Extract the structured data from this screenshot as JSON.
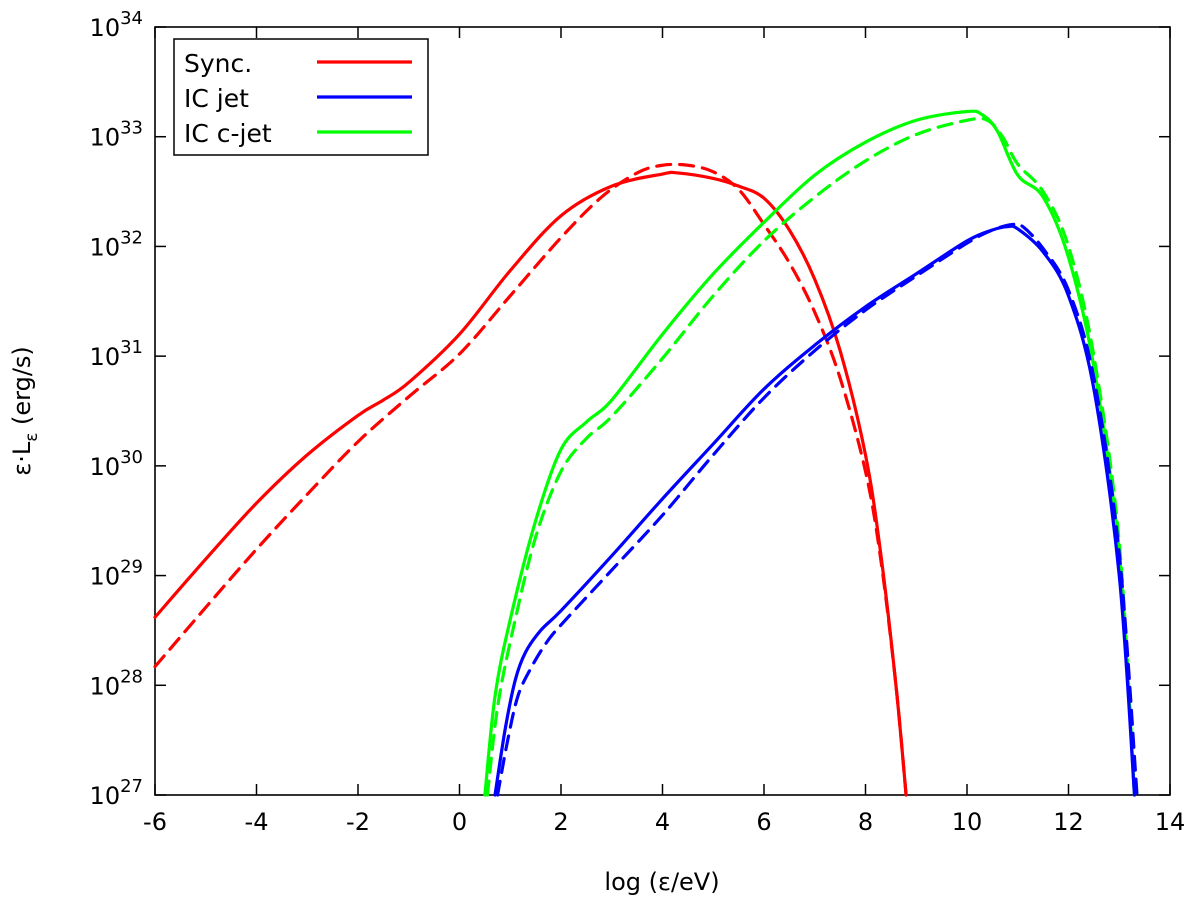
{
  "chart_data": {
    "type": "line",
    "title": "",
    "xlabel": "log (ε/eV)",
    "ylabel_base": "ε·L",
    "ylabel_sub": "ε",
    "ylabel_unit": " (erg/s)",
    "xlim": [
      -6,
      14
    ],
    "ylim_log10": [
      27,
      34
    ],
    "x_ticks": [
      -6,
      -4,
      -2,
      0,
      2,
      4,
      6,
      8,
      10,
      12,
      14
    ],
    "y_tick_exponents": [
      27,
      28,
      29,
      30,
      31,
      32,
      33,
      34
    ],
    "y_tick_base": "10",
    "grid": false,
    "legend_position": "top-left",
    "legend": [
      {
        "label": "Sync.",
        "color": "#ff0000"
      },
      {
        "label": "IC jet",
        "color": "#0000ff"
      },
      {
        "label": "IC c-jet",
        "color": "#00ff00"
      }
    ],
    "series": [
      {
        "name": "Sync.",
        "style": "solid",
        "color": "#ff0000",
        "x": [
          -6,
          -5,
          -4,
          -3,
          -2,
          -1.5,
          -1,
          0,
          1,
          2,
          3,
          4,
          4.3,
          5,
          5.5,
          6,
          6.5,
          7,
          7.5,
          8,
          8.3,
          8.6,
          8.8
        ],
        "log_y": [
          28.62,
          29.15,
          29.66,
          30.1,
          30.46,
          30.6,
          30.76,
          31.2,
          31.78,
          32.28,
          32.55,
          32.66,
          32.67,
          32.62,
          32.55,
          32.44,
          32.15,
          31.7,
          31.05,
          30.1,
          29.2,
          28.0,
          27.0
        ]
      },
      {
        "name": "Sync.",
        "style": "dashed",
        "color": "#ff0000",
        "x": [
          -6,
          -5,
          -4,
          -3,
          -2,
          -1,
          0,
          1,
          2,
          2.8,
          3.5,
          4,
          4.5,
          5,
          5.5,
          6,
          6.5,
          7,
          7.5,
          8,
          8.3,
          8.6,
          8.8
        ],
        "log_y": [
          28.17,
          28.71,
          29.24,
          29.74,
          30.22,
          30.63,
          31.02,
          31.55,
          32.08,
          32.45,
          32.67,
          32.74,
          32.74,
          32.68,
          32.52,
          32.2,
          31.85,
          31.4,
          30.8,
          29.95,
          29.15,
          28.0,
          27.0
        ]
      },
      {
        "name": "IC jet",
        "style": "solid",
        "color": "#0000ff",
        "x": [
          0.7,
          0.9,
          1.1,
          1.3,
          1.6,
          2,
          3,
          4,
          5,
          6,
          7,
          8,
          9,
          10,
          10.5,
          10.8,
          11,
          11.5,
          12,
          12.5,
          13,
          13.3
        ],
        "log_y": [
          27.0,
          27.6,
          28.05,
          28.3,
          28.5,
          28.68,
          29.18,
          29.7,
          30.2,
          30.7,
          31.1,
          31.45,
          31.75,
          32.05,
          32.15,
          32.18,
          32.16,
          31.95,
          31.55,
          30.7,
          29.0,
          27.0
        ]
      },
      {
        "name": "IC jet",
        "style": "dashed",
        "color": "#0000ff",
        "x": [
          0.75,
          0.95,
          1.15,
          1.4,
          1.7,
          2,
          3,
          4,
          5,
          6,
          7,
          8,
          9,
          10,
          10.5,
          10.9,
          11.1,
          11.5,
          12,
          12.5,
          13,
          13.35
        ],
        "log_y": [
          27.0,
          27.5,
          27.9,
          28.15,
          28.38,
          28.55,
          29.05,
          29.55,
          30.1,
          30.62,
          31.05,
          31.42,
          31.73,
          32.03,
          32.15,
          32.2,
          32.18,
          31.98,
          31.6,
          30.8,
          29.2,
          27.0
        ]
      },
      {
        "name": "IC c-jet",
        "style": "solid",
        "color": "#00ff00",
        "x": [
          0.5,
          0.7,
          1,
          1.5,
          2,
          2.5,
          3,
          4,
          5,
          6,
          7,
          8,
          9,
          10,
          10.3,
          10.6,
          11,
          11.5,
          12,
          12.5,
          13,
          13.3
        ],
        "log_y": [
          27.0,
          27.9,
          28.6,
          29.5,
          30.15,
          30.4,
          30.6,
          31.2,
          31.75,
          32.22,
          32.65,
          32.95,
          33.15,
          33.23,
          33.2,
          33.05,
          32.65,
          32.45,
          31.9,
          30.9,
          29.2,
          27.0
        ]
      },
      {
        "name": "IC c-jet",
        "style": "dashed",
        "color": "#00ff00",
        "x": [
          0.55,
          0.75,
          1.05,
          1.5,
          2,
          2.5,
          3,
          4,
          5,
          6,
          7,
          8,
          9,
          10,
          10.4,
          10.7,
          11,
          11.5,
          12,
          12.5,
          13,
          13.3
        ],
        "log_y": [
          27.0,
          27.8,
          28.5,
          29.35,
          29.95,
          30.25,
          30.45,
          30.98,
          31.55,
          32.05,
          32.45,
          32.78,
          33.02,
          33.15,
          33.15,
          33.0,
          32.75,
          32.5,
          32.0,
          31.0,
          29.3,
          27.0
        ]
      }
    ]
  }
}
